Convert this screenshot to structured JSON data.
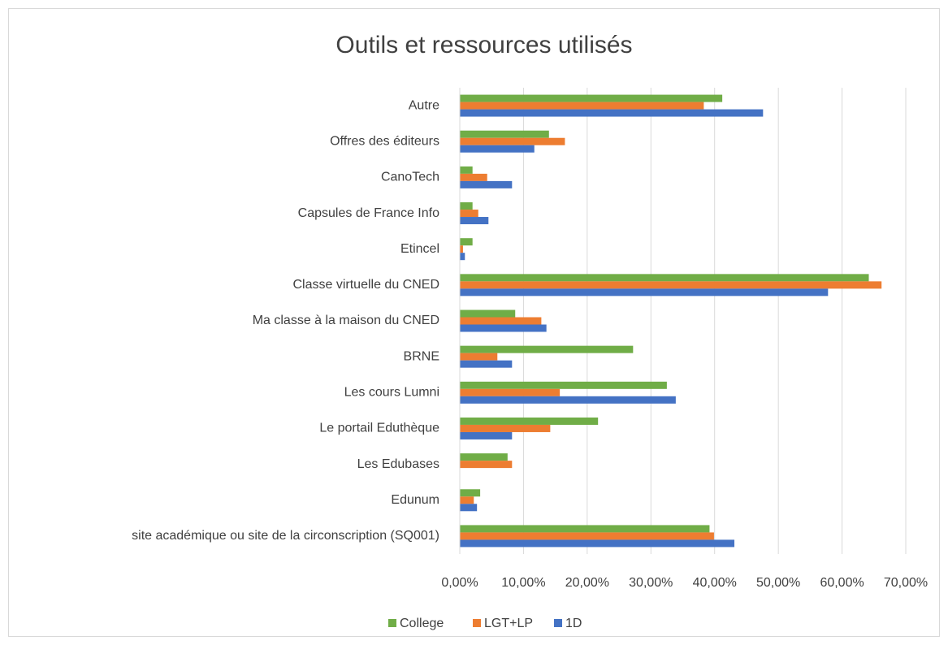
{
  "chart_data": {
    "type": "hbar",
    "title": "Outils et ressources utilisés",
    "categories": [
      "site académique ou site de la circonscription (SQ001)",
      "Edunum",
      "Les Edubases",
      "Le portail Eduthèque",
      "Les cours Lumni",
      "BRNE",
      "Ma classe à la maison du CNED",
      "Classe virtuelle du CNED",
      "Etincel",
      "Capsules de France Info",
      "CanoTech",
      "Offres des éditeurs",
      "Autre"
    ],
    "series": [
      {
        "name": "College",
        "color": "#70ad47",
        "values": [
          39.2,
          3.2,
          7.5,
          21.7,
          32.5,
          27.2,
          8.7,
          64.2,
          2.0,
          2.0,
          2.0,
          14.0,
          41.2
        ]
      },
      {
        "name": "LGT+LP",
        "color": "#ed7d31",
        "values": [
          39.9,
          2.2,
          8.2,
          14.2,
          15.7,
          5.9,
          12.8,
          66.2,
          0.5,
          2.9,
          4.3,
          16.5,
          38.3
        ]
      },
      {
        "name": "1D",
        "color": "#4472c4",
        "values": [
          43.1,
          2.7,
          0,
          8.2,
          33.9,
          8.2,
          13.6,
          57.8,
          0.8,
          4.5,
          8.2,
          11.7,
          47.6
        ]
      }
    ],
    "xlim": [
      0,
      70
    ],
    "xticks": [
      {
        "value": 0,
        "label": "0,00%"
      },
      {
        "value": 10,
        "label": "10,00%"
      },
      {
        "value": 20,
        "label": "20,00%"
      },
      {
        "value": 30,
        "label": "30,00%"
      },
      {
        "value": 40,
        "label": "40,00%"
      },
      {
        "value": 50,
        "label": "50,00%"
      },
      {
        "value": 60,
        "label": "60,00%"
      },
      {
        "value": 70,
        "label": "70,00%"
      }
    ],
    "grid": true,
    "legend": "bottom"
  }
}
